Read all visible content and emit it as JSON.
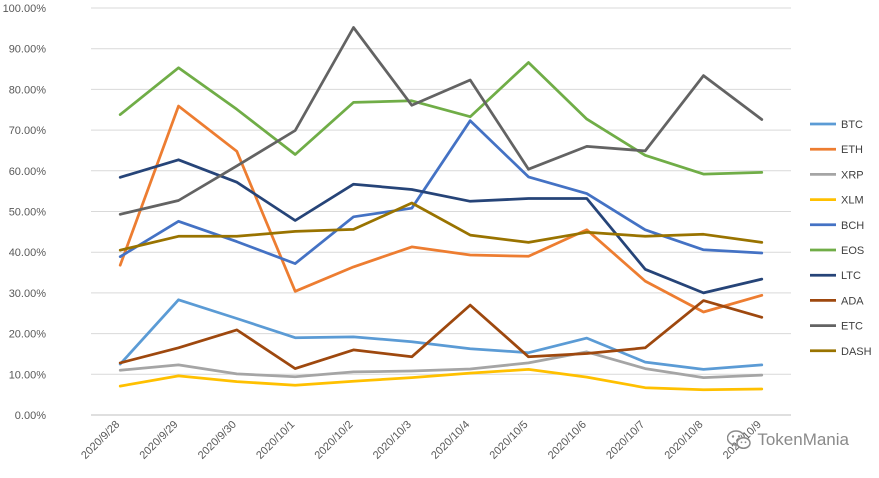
{
  "chart_data": {
    "type": "line",
    "title": "",
    "xlabel": "",
    "ylabel": "",
    "ylim": [
      0,
      100
    ],
    "y_ticks": [
      "0.00%",
      "10.00%",
      "20.00%",
      "30.00%",
      "40.00%",
      "50.00%",
      "60.00%",
      "70.00%",
      "80.00%",
      "90.00%",
      "100.00%"
    ],
    "grid": "horizontal",
    "legend_position": "right",
    "categories": [
      "2020/9/28",
      "2020/9/29",
      "2020/9/30",
      "2020/10/1",
      "2020/10/2",
      "2020/10/3",
      "2020/10/4",
      "2020/10/5",
      "2020/10/6",
      "2020/10/7",
      "2020/10/8",
      "2020/10/9"
    ],
    "series": [
      {
        "name": "BTC",
        "color": "#5B9BD5",
        "values": [
          12.5,
          28.3,
          23.7,
          19.0,
          19.2,
          18.0,
          16.3,
          15.3,
          18.9,
          13.0,
          11.2,
          12.3
        ]
      },
      {
        "name": "ETH",
        "color": "#ED7D31",
        "values": [
          36.8,
          75.9,
          64.8,
          30.4,
          36.4,
          41.3,
          39.3,
          39.0,
          45.5,
          32.9,
          25.3,
          29.4
        ]
      },
      {
        "name": "XRP",
        "color": "#A5A5A5",
        "values": [
          11.0,
          12.3,
          10.1,
          9.4,
          10.6,
          10.8,
          11.3,
          12.8,
          15.5,
          11.4,
          9.2,
          9.8
        ]
      },
      {
        "name": "XLM",
        "color": "#FFC000",
        "values": [
          7.1,
          9.6,
          8.2,
          7.3,
          8.3,
          9.2,
          10.3,
          11.2,
          9.3,
          6.7,
          6.2,
          6.4
        ]
      },
      {
        "name": "BCH",
        "color": "#4472C4",
        "values": [
          38.9,
          47.6,
          42.6,
          37.2,
          48.7,
          50.8,
          72.3,
          58.5,
          54.4,
          45.5,
          40.6,
          39.8
        ]
      },
      {
        "name": "EOS",
        "color": "#70AD47",
        "values": [
          73.8,
          85.3,
          75.1,
          64.0,
          76.8,
          77.2,
          73.3,
          86.6,
          72.7,
          63.8,
          59.2,
          59.6
        ]
      },
      {
        "name": "LTC",
        "color": "#264478",
        "values": [
          58.4,
          62.7,
          57.2,
          47.8,
          56.7,
          55.4,
          52.5,
          53.2,
          53.2,
          35.8,
          30.0,
          33.4
        ]
      },
      {
        "name": "ADA",
        "color": "#9E480E",
        "values": [
          12.8,
          16.5,
          20.9,
          11.4,
          16.0,
          14.3,
          27.0,
          14.3,
          15.1,
          16.5,
          28.1,
          24.0
        ]
      },
      {
        "name": "ETC",
        "color": "#636363",
        "values": [
          49.3,
          52.7,
          61.2,
          69.9,
          95.2,
          76.1,
          82.3,
          60.4,
          66.0,
          64.9,
          83.4,
          72.6
        ]
      },
      {
        "name": "DASH",
        "color": "#997300",
        "values": [
          40.5,
          43.9,
          43.9,
          45.1,
          45.6,
          52.1,
          44.2,
          42.4,
          44.9,
          43.9,
          44.4,
          42.4
        ]
      }
    ]
  },
  "watermark": {
    "text": "TokenMania",
    "icon": "wechat-icon"
  }
}
